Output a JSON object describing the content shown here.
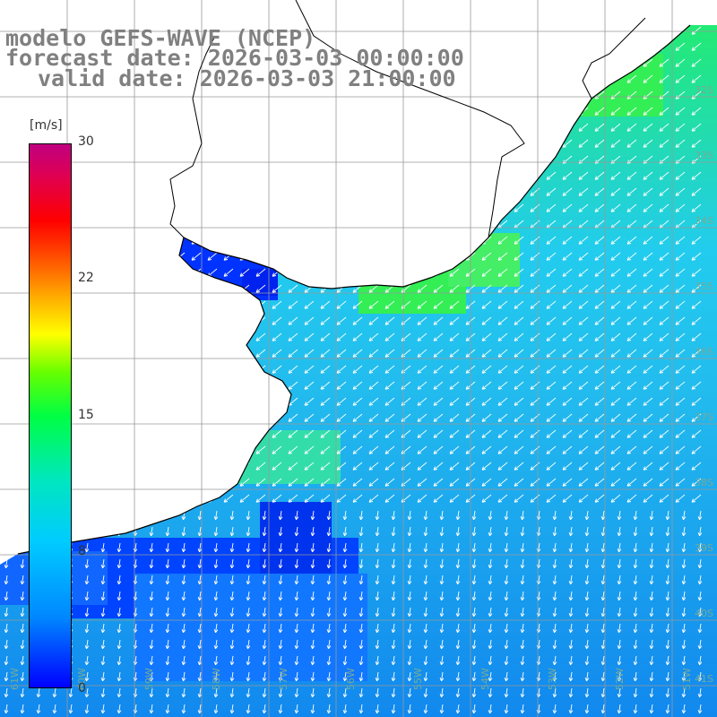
{
  "title": {
    "line1": "modelo GEFS-WAVE (NCEP)",
    "line2": "forecast date: 2026-03-03 00:00:00",
    "line3": "valid date: 2026-03-03 21:00:00"
  },
  "colorbar": {
    "unit": "[m/s]",
    "ticks": [
      "30",
      "22",
      "15",
      "8",
      "0"
    ],
    "tick_values": [
      30,
      22,
      15,
      8,
      0
    ],
    "range": [
      0,
      30
    ]
  },
  "lat_labels": [
    "32S",
    "33S",
    "34S",
    "35S",
    "36S",
    "37S",
    "38S",
    "39S",
    "40S",
    "41S"
  ],
  "lon_labels": [
    "61W",
    "60W",
    "59W",
    "58W",
    "57W",
    "56W",
    "55W",
    "54W",
    "53W",
    "52W",
    "51W"
  ],
  "colors": {
    "ocean_calm": "#0033ff",
    "ocean_mid": "#22bbee",
    "ocean_strong": "#22ee44",
    "land": "#ffffff",
    "grid": "#999999",
    "coast": "#000000",
    "arrows": "#ffffff"
  }
}
